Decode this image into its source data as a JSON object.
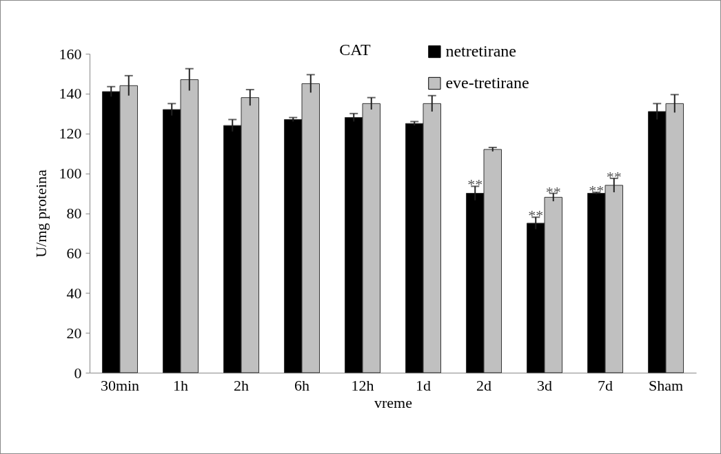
{
  "chart_data": {
    "type": "bar",
    "title": "CAT",
    "xlabel": "vreme",
    "ylabel": "U/mg  proteina",
    "categories": [
      "30min",
      "1h",
      "2h",
      "6h",
      "12h",
      "1d",
      "2d",
      "3d",
      "7d",
      "Sham"
    ],
    "series": [
      {
        "name": "netretirane",
        "color": "#000000",
        "values": [
          141,
          132,
          124,
          127,
          128,
          125,
          90,
          75,
          90,
          131
        ],
        "errors": [
          2.5,
          3,
          3,
          1,
          2,
          1,
          3.5,
          3,
          0.5,
          4
        ]
      },
      {
        "name": "eve-tretirane",
        "color": "#c0c0c0",
        "values": [
          144,
          147,
          138,
          145,
          135,
          135,
          112,
          88,
          94,
          135
        ],
        "errors": [
          5,
          5.5,
          4,
          4.5,
          3,
          4,
          1,
          2,
          3.5,
          4.5
        ]
      }
    ],
    "ylim": [
      0,
      160
    ],
    "yticks": [
      0,
      20,
      40,
      60,
      80,
      100,
      120,
      140,
      160
    ],
    "grid": false,
    "legend": "top right",
    "annotations": [
      {
        "text": "**",
        "x": "2d",
        "y": 90
      },
      {
        "text": "**",
        "x": "3d",
        "y": 75
      },
      {
        "text": "**",
        "x": "3d",
        "y": 88
      },
      {
        "text": "**",
        "x": "7d",
        "y": 90
      },
      {
        "text": "**",
        "x": "7d",
        "y": 94
      }
    ]
  }
}
